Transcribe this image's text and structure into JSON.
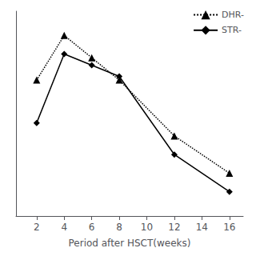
{
  "chart_data": {
    "type": "line",
    "xlabel": "Period after HSCT(weeks)",
    "x": [
      2,
      4,
      6,
      8,
      12,
      16
    ],
    "series": [
      {
        "name": "DHR-",
        "color": "#000000",
        "marker": "triangle",
        "line_style": "dotted",
        "values": [
          68,
          92,
          80,
          68,
          38,
          18
        ]
      },
      {
        "name": "STR-",
        "color": "#000000",
        "marker": "diamond",
        "line_style": "solid",
        "values": [
          45,
          82,
          76,
          70,
          28,
          8
        ]
      }
    ],
    "xlim": [
      0.5,
      17
    ],
    "xticks": [
      2,
      4,
      6,
      8,
      10,
      12,
      14,
      16
    ],
    "ylim": [
      -5,
      105
    ],
    "yticks": [],
    "grid": false,
    "legend": "upper right",
    "tick_labels": "x"
  }
}
